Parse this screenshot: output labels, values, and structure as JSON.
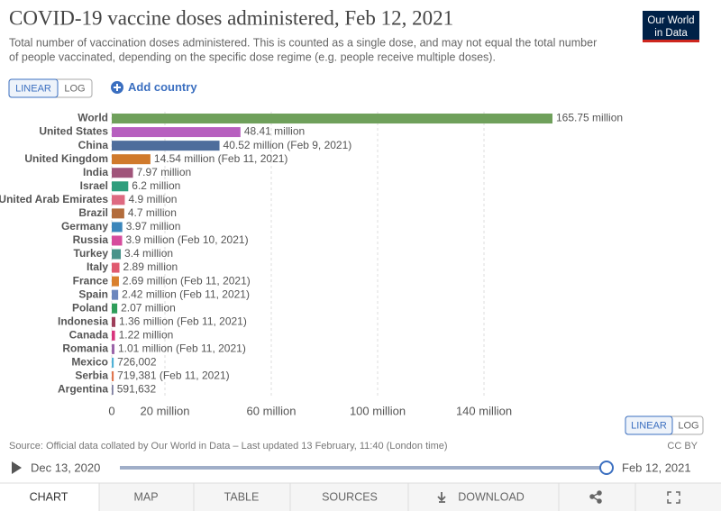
{
  "chart_data": {
    "type": "bar",
    "orientation": "horizontal",
    "title": "COVID-19 vaccine doses administered, Feb 12, 2021",
    "subtitle": [
      "Total number of vaccination doses administered. This is counted as a single dose, and may not equal the total number",
      "of people vaccinated, depending on the specific dose regime (e.g. people receive multiple doses)."
    ],
    "categories": [
      "World",
      "United States",
      "China",
      "United Kingdom",
      "India",
      "Israel",
      "United Arab Emirates",
      "Brazil",
      "Germany",
      "Russia",
      "Turkey",
      "Italy",
      "France",
      "Spain",
      "Poland",
      "Indonesia",
      "Canada",
      "Romania",
      "Mexico",
      "Serbia",
      "Argentina"
    ],
    "values": [
      165750000,
      48410000,
      40520000,
      14540000,
      7970000,
      6200000,
      4900000,
      4700000,
      3970000,
      3900000,
      3400000,
      2890000,
      2690000,
      2420000,
      2070000,
      1360000,
      1220000,
      1010000,
      726002,
      719381,
      591632
    ],
    "value_labels": [
      "165.75 million",
      "48.41 million",
      "40.52 million (Feb 9, 2021)",
      "14.54 million (Feb 11, 2021)",
      "7.97 million",
      "6.2 million",
      "4.9 million",
      "4.7 million",
      "3.97 million",
      "3.9 million (Feb 10, 2021)",
      "3.4 million",
      "2.89 million",
      "2.69 million (Feb 11, 2021)",
      "2.42 million (Feb 11, 2021)",
      "2.07 million",
      "1.36 million (Feb 11, 2021)",
      "1.22 million",
      "1.01 million (Feb 11, 2021)",
      "726,002",
      "719,381 (Feb 11, 2021)",
      "591,632"
    ],
    "colors": [
      "#6fa05b",
      "#b75fbf",
      "#4e6d9c",
      "#d07a2c",
      "#a0547a",
      "#2f9e7d",
      "#de6a81",
      "#b36c3c",
      "#3b86bb",
      "#d64c9d",
      "#48938a",
      "#e05a6f",
      "#d9802e",
      "#6c87bd",
      "#2e9d5a",
      "#9e3e5a",
      "#d8347d",
      "#9a64a8",
      "#4fb1d6",
      "#e0764f",
      "#7b7b9e"
    ],
    "xlim": [
      0,
      165750000
    ],
    "xticks": [
      0,
      {
        "value": 20000000,
        "label": "20 million"
      },
      {
        "value": 60000000,
        "label": "60 million"
      },
      {
        "value": 100000000,
        "label": "100 million"
      },
      {
        "value": 140000000,
        "label": "140 million"
      }
    ],
    "grid": true
  },
  "logo": [
    "Our World",
    "in Data"
  ],
  "scale_buttons": [
    "LINEAR",
    "LOG"
  ],
  "add_country": "Add country",
  "source": "Source: Official data collated by Our World in Data – Last updated 13 February, 11:40 (London time)",
  "license": "CC BY",
  "timeline": [
    "Dec 13, 2020",
    "Feb 12, 2021"
  ],
  "tabs": [
    "CHART",
    "MAP",
    "TABLE",
    "SOURCES",
    "DOWNLOAD"
  ]
}
